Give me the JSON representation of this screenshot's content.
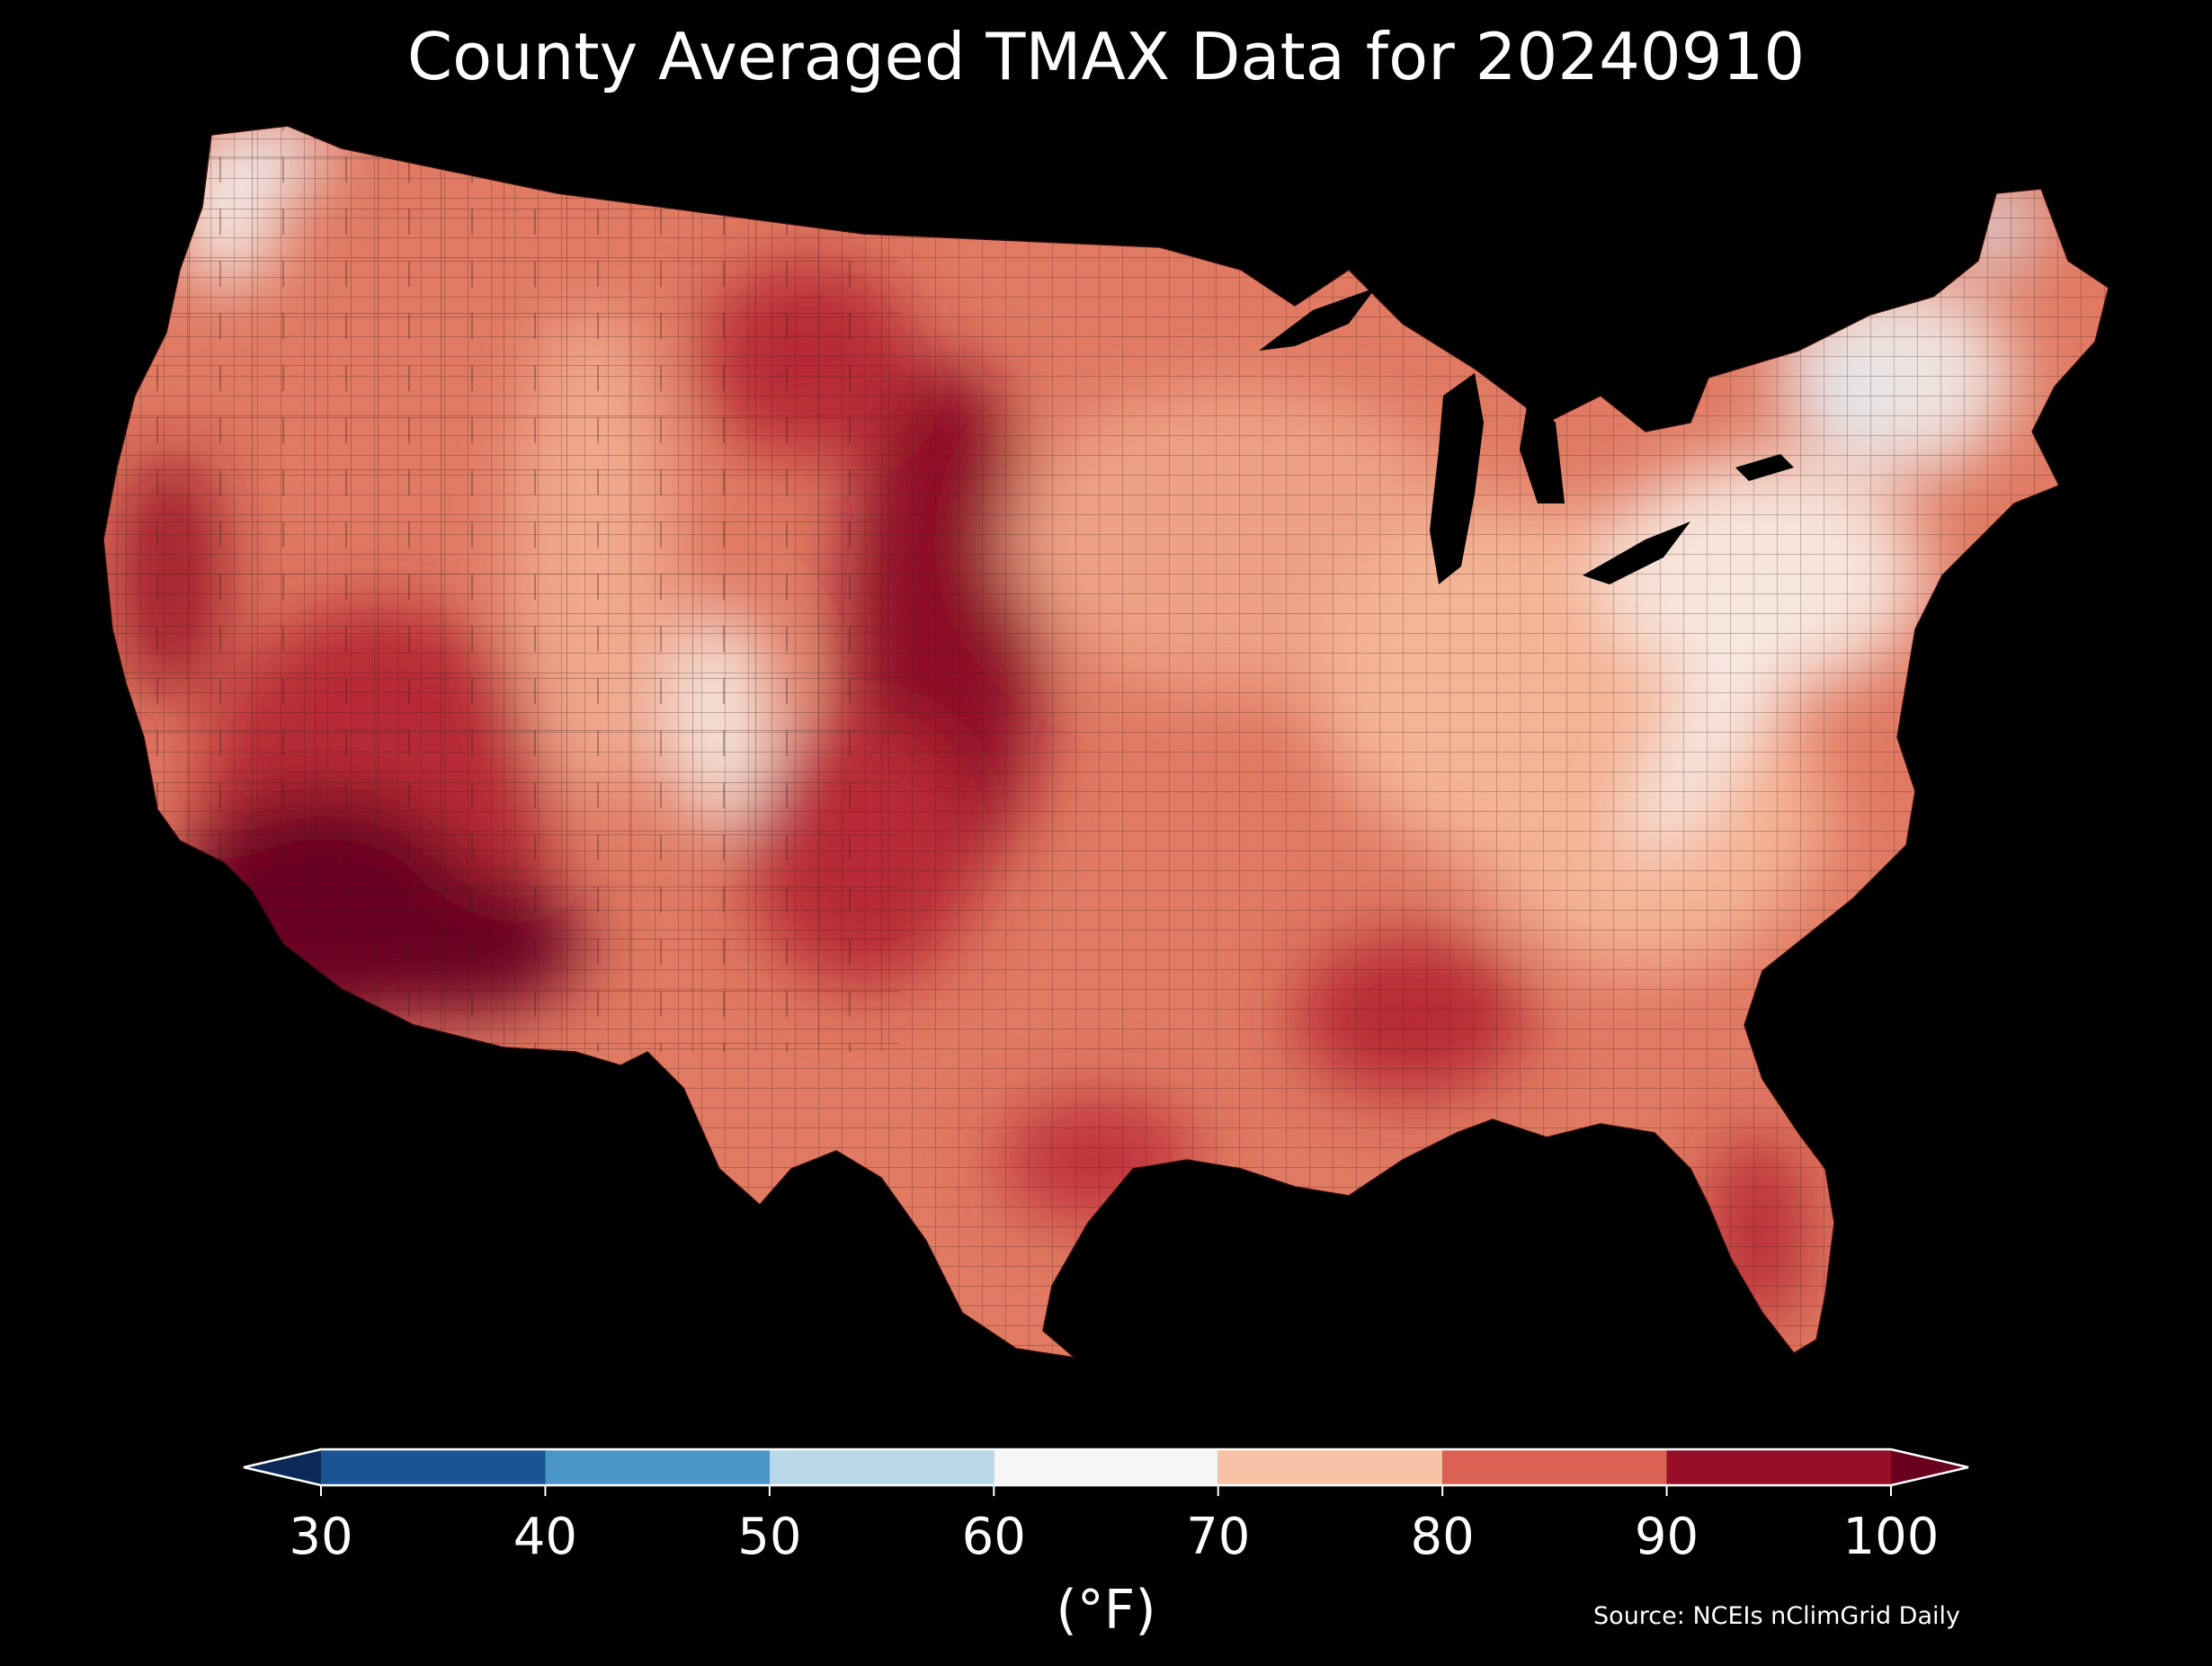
{
  "title": "County Averaged TMAX Data for 20240910",
  "colorbar": {
    "ticks": [
      "30",
      "40",
      "50",
      "60",
      "70",
      "80",
      "90",
      "100"
    ],
    "unit": "(°F)",
    "bins": [
      {
        "min": 30,
        "max": 40,
        "color": "#1a5495"
      },
      {
        "min": 40,
        "max": 50,
        "color": "#4a96c6"
      },
      {
        "min": 50,
        "max": 60,
        "color": "#b8d8ea"
      },
      {
        "min": 60,
        "max": 70,
        "color": "#f6f6f6"
      },
      {
        "min": 70,
        "max": 80,
        "color": "#f9c2a6"
      },
      {
        "min": 80,
        "max": 90,
        "color": "#db6252"
      },
      {
        "min": 90,
        "max": 100,
        "color": "#960f27"
      }
    ],
    "under_color": "#0b2a57",
    "over_color": "#6a0020"
  },
  "source": "Source: NCEIs nClimGrid Daily",
  "map": {
    "subject": "Contiguous United States county choropleth",
    "land_colors": {
      "warm_base": "#e07a62",
      "hot": "#c0303a",
      "very_hot": "#960f27",
      "extreme": "#6a0020",
      "mild": "#f5b597",
      "cool_white": "#f6ece6",
      "cool_blue": "#dbe8f2"
    }
  }
}
